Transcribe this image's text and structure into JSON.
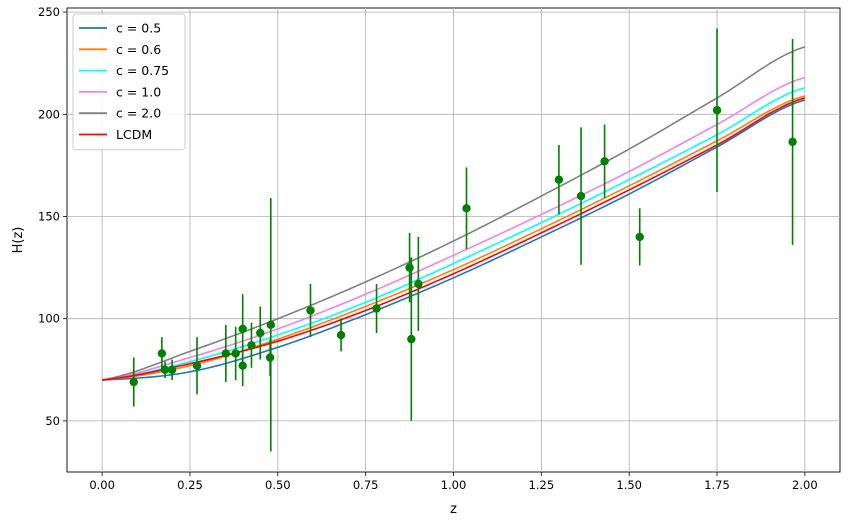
{
  "chart_data": {
    "type": "line",
    "title": "",
    "xlabel": "z",
    "ylabel": "H(z)",
    "xlim": [
      -0.1,
      2.1
    ],
    "ylim": [
      25,
      252
    ],
    "xticks": [
      0.0,
      0.25,
      0.5,
      0.75,
      1.0,
      1.25,
      1.5,
      1.75,
      2.0
    ],
    "xtick_labels": [
      "0.00",
      "0.25",
      "0.50",
      "0.75",
      "1.00",
      "1.25",
      "1.50",
      "1.75",
      "2.00"
    ],
    "yticks": [
      50,
      100,
      150,
      200,
      250
    ],
    "ytick_labels": [
      "50",
      "100",
      "150",
      "200",
      "250"
    ],
    "grid": true,
    "legend_position": "top-left",
    "series": [
      {
        "name": "c = 0.5",
        "color": "#1f77b4",
        "x": [
          0,
          0.25,
          0.5,
          0.75,
          1.0,
          1.25,
          1.5,
          1.75,
          2.0
        ],
        "y": [
          70,
          74,
          86,
          102,
          120,
          140,
          161,
          184,
          207
        ]
      },
      {
        "name": "c = 0.6",
        "color": "#ff7f0e",
        "x": [
          0,
          0.25,
          0.5,
          0.75,
          1.0,
          1.25,
          1.5,
          1.75,
          2.0
        ],
        "y": [
          70,
          77,
          90,
          106,
          124,
          144,
          165,
          187,
          209
        ]
      },
      {
        "name": "c = 0.75",
        "color": "#00ffff",
        "x": [
          0,
          0.25,
          0.5,
          0.75,
          1.0,
          1.25,
          1.5,
          1.75,
          2.0
        ],
        "y": [
          70,
          79,
          92,
          108,
          127,
          147,
          168,
          190,
          213
        ]
      },
      {
        "name": "c = 1.0",
        "color": "#ee82ee",
        "x": [
          0,
          0.25,
          0.5,
          0.75,
          1.0,
          1.25,
          1.5,
          1.75,
          2.0
        ],
        "y": [
          70,
          81,
          95,
          112,
          131,
          151,
          172,
          195,
          218
        ]
      },
      {
        "name": "c = 2.0",
        "color": "#808080",
        "x": [
          0,
          0.25,
          0.5,
          0.75,
          1.0,
          1.25,
          1.5,
          1.75,
          2.0
        ],
        "y": [
          70,
          84,
          100,
          118,
          138,
          160,
          183,
          208,
          233
        ]
      },
      {
        "name": "LCDM",
        "color": "#ff0000",
        "x": [
          0,
          0.25,
          0.5,
          0.75,
          1.0,
          1.25,
          1.5,
          1.75,
          2.0
        ],
        "y": [
          70,
          78,
          89,
          104,
          122,
          142,
          163,
          185,
          208
        ]
      }
    ],
    "data_points": {
      "color": "#008000",
      "points": [
        {
          "z": 0.09,
          "H": 69,
          "err": 12
        },
        {
          "z": 0.17,
          "H": 83,
          "err": 8
        },
        {
          "z": 0.179,
          "H": 75,
          "err": 4
        },
        {
          "z": 0.199,
          "H": 75,
          "err": 5
        },
        {
          "z": 0.27,
          "H": 77,
          "err": 14
        },
        {
          "z": 0.352,
          "H": 83,
          "err": 14
        },
        {
          "z": 0.38,
          "H": 83,
          "err": 13
        },
        {
          "z": 0.4,
          "H": 95,
          "err": 17
        },
        {
          "z": 0.4,
          "H": 77,
          "err": 10
        },
        {
          "z": 0.425,
          "H": 87,
          "err": 11
        },
        {
          "z": 0.45,
          "H": 93,
          "err": 13
        },
        {
          "z": 0.478,
          "H": 81,
          "err": 9
        },
        {
          "z": 0.48,
          "H": 97,
          "err": 62
        },
        {
          "z": 0.593,
          "H": 104,
          "err": 13
        },
        {
          "z": 0.68,
          "H": 92,
          "err": 8
        },
        {
          "z": 0.781,
          "H": 105,
          "err": 12
        },
        {
          "z": 0.875,
          "H": 125,
          "err": 17
        },
        {
          "z": 0.88,
          "H": 90,
          "err": 40
        },
        {
          "z": 0.9,
          "H": 117,
          "err": 23
        },
        {
          "z": 1.037,
          "H": 154,
          "err": 20
        },
        {
          "z": 1.3,
          "H": 168,
          "err": 17
        },
        {
          "z": 1.363,
          "H": 160,
          "err": 33.6
        },
        {
          "z": 1.43,
          "H": 177,
          "err": 18
        },
        {
          "z": 1.53,
          "H": 140,
          "err": 14
        },
        {
          "z": 1.75,
          "H": 202,
          "err": 40
        },
        {
          "z": 1.965,
          "H": 186.5,
          "err": 50.4
        }
      ]
    }
  }
}
